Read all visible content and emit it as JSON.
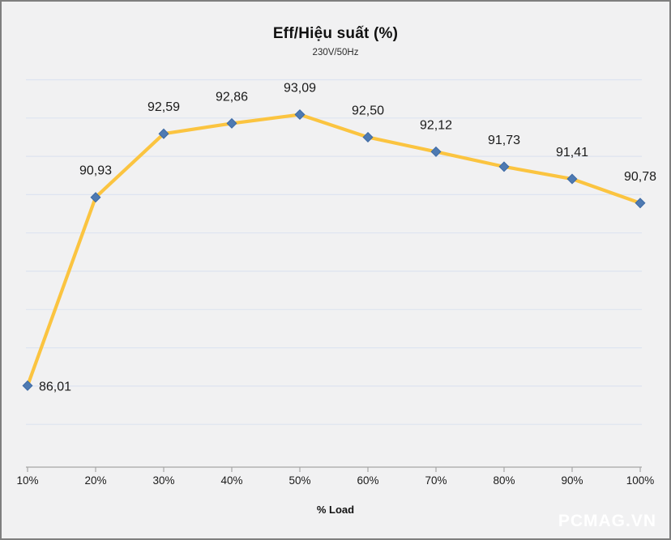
{
  "chart_data": {
    "type": "line",
    "title": "Eff/Hiệu suất (%)",
    "subtitle": "230V/50Hz",
    "xlabel": "% Load",
    "categories": [
      "10%",
      "20%",
      "30%",
      "40%",
      "50%",
      "60%",
      "70%",
      "80%",
      "90%",
      "100%"
    ],
    "series": [
      {
        "name": "Eff/Hiệu suất",
        "values": [
          86.01,
          90.93,
          92.59,
          92.86,
          93.09,
          92.5,
          92.12,
          91.73,
          91.41,
          90.78
        ],
        "labels": [
          "86,01",
          "90,93",
          "92,59",
          "92,86",
          "93,09",
          "92,50",
          "92,12",
          "91,73",
          "91,41",
          "90,78"
        ]
      }
    ],
    "ylim": [
      85,
      94
    ],
    "grid_step": 1,
    "grid": "horizontal-only",
    "legend": "none",
    "y_tick_labels_visible": false,
    "colors": {
      "line": "#FBC440",
      "marker_fill": "#4E7AB2",
      "marker_stroke": "#3C69A4",
      "gridline": "#DDE4F0",
      "axis": "#A6A6A6",
      "background": "#F1F1F2",
      "frame_border": "#7F7F7F",
      "text": "#1A1A1A",
      "watermark": "#FFFFFF"
    }
  },
  "watermark": {
    "text": "PCMAG.VN"
  }
}
